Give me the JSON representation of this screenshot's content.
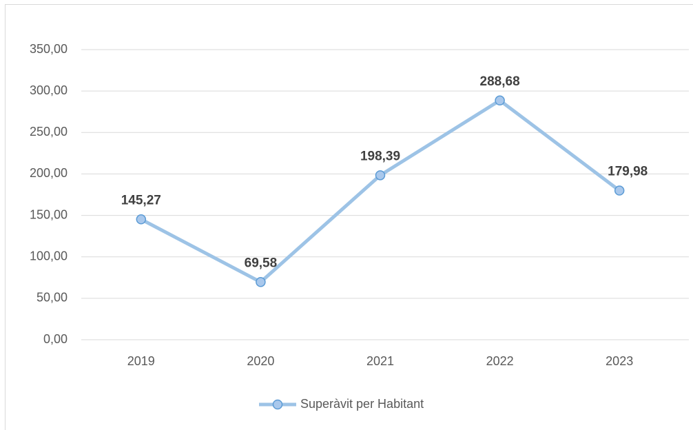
{
  "chart_data": {
    "type": "line",
    "categories": [
      "2019",
      "2020",
      "2021",
      "2022",
      "2023"
    ],
    "series": [
      {
        "name": "Superàvit per Habitant",
        "color": "#9dc3e6",
        "marker_edge": "#5b9bd5",
        "values": [
          145.27,
          69.58,
          198.39,
          288.68,
          179.98
        ],
        "value_labels": [
          "145,27",
          "69,58",
          "198,39",
          "288,68",
          "179,98"
        ]
      }
    ],
    "ylim": [
      0,
      350
    ],
    "yticks": [
      {
        "value": 0,
        "label": "0,00"
      },
      {
        "value": 50,
        "label": "50,00"
      },
      {
        "value": 100,
        "label": "100,00"
      },
      {
        "value": 150,
        "label": "150,00"
      },
      {
        "value": 200,
        "label": "200,00"
      },
      {
        "value": 250,
        "label": "250,00"
      },
      {
        "value": 300,
        "label": "300,00"
      },
      {
        "value": 350,
        "label": "350,00"
      }
    ],
    "grid": true,
    "legend": "bottom"
  }
}
